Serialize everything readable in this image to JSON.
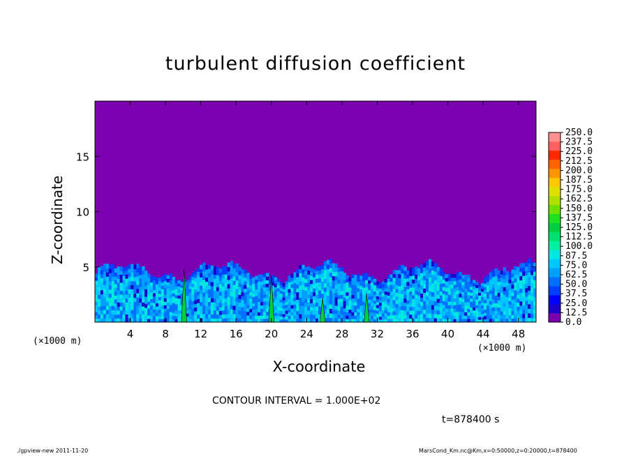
{
  "chart_data": {
    "type": "heatmap",
    "title": "turbulent diffusion coefficient",
    "xlabel": "X-coordinate",
    "ylabel": "Z-coordinate",
    "x_unit_left": "(×1000 m)",
    "x_unit_right": "(×1000 m)",
    "xlim": [
      0,
      50
    ],
    "ylim": [
      0,
      20
    ],
    "x_ticks": [
      4,
      8,
      12,
      16,
      20,
      24,
      28,
      32,
      36,
      40,
      44,
      48
    ],
    "y_ticks": [
      5,
      10,
      15
    ],
    "colorbar_levels": [
      "0.0",
      "12.5",
      "25.0",
      "37.5",
      "50.0",
      "62.5",
      "75.0",
      "87.5",
      "100.0",
      "112.5",
      "125.0",
      "137.5",
      "150.0",
      "162.5",
      "175.0",
      "187.5",
      "200.0",
      "212.5",
      "225.0",
      "237.5",
      "250.0"
    ],
    "colorbar_colors": [
      "#7a00b0",
      "#1a00c8",
      "#0000ff",
      "#0040ff",
      "#0070ff",
      "#00a0ff",
      "#00c8ff",
      "#00e8e0",
      "#00f0a0",
      "#00e070",
      "#00d040",
      "#20e020",
      "#70e000",
      "#b0e000",
      "#e0e000",
      "#ffc800",
      "#ff9600",
      "#ff6400",
      "#ff2800",
      "#ff6060",
      "#ff9090"
    ],
    "background_color": "#7a00b0",
    "turbulent_layer_top_km_approx": 5,
    "contour_interval": "CONTOUR INTERVAL = 1.000E+02",
    "time": "t=878400 s"
  },
  "footer": {
    "left": "./gpview-new  2011-11-20",
    "right": "MarsCond_Km.nc@Km,x=0:50000,z=0:20000,t=878400"
  }
}
